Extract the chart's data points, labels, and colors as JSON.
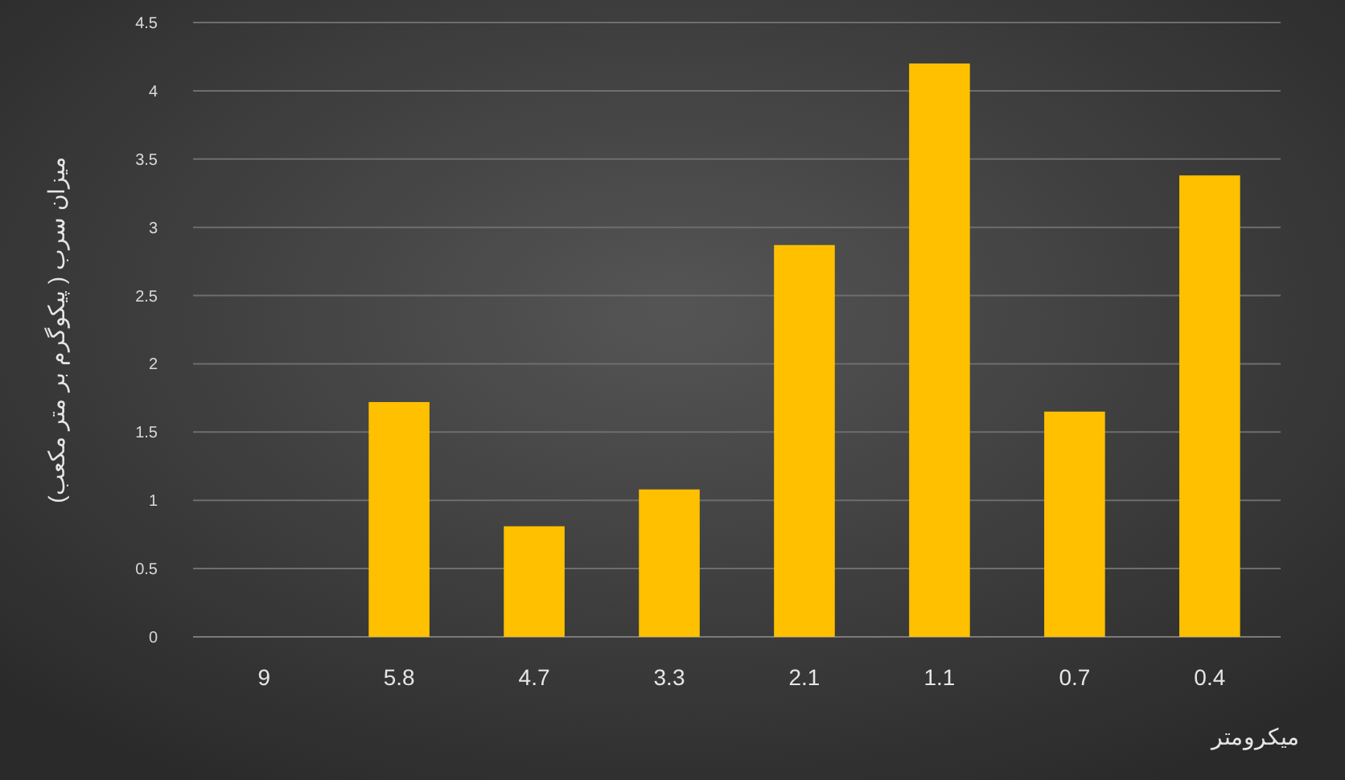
{
  "chart_data": {
    "type": "bar",
    "ylabel": "میزان سرب ( پیکوگرم بر متر مکعب)",
    "xlabel": "میکرومتر",
    "categories": [
      "9",
      "5.8",
      "4.7",
      "3.3",
      "2.1",
      "1.1",
      "0.7",
      "0.4"
    ],
    "values": [
      0,
      1.72,
      0.81,
      1.08,
      2.87,
      4.2,
      1.65,
      3.38
    ],
    "color": "#ffc000",
    "ylim": [
      0,
      4.5
    ],
    "yticks": [
      0,
      0.5,
      1,
      1.5,
      2,
      2.5,
      3,
      3.5,
      4,
      4.5
    ],
    "grid": "y"
  }
}
